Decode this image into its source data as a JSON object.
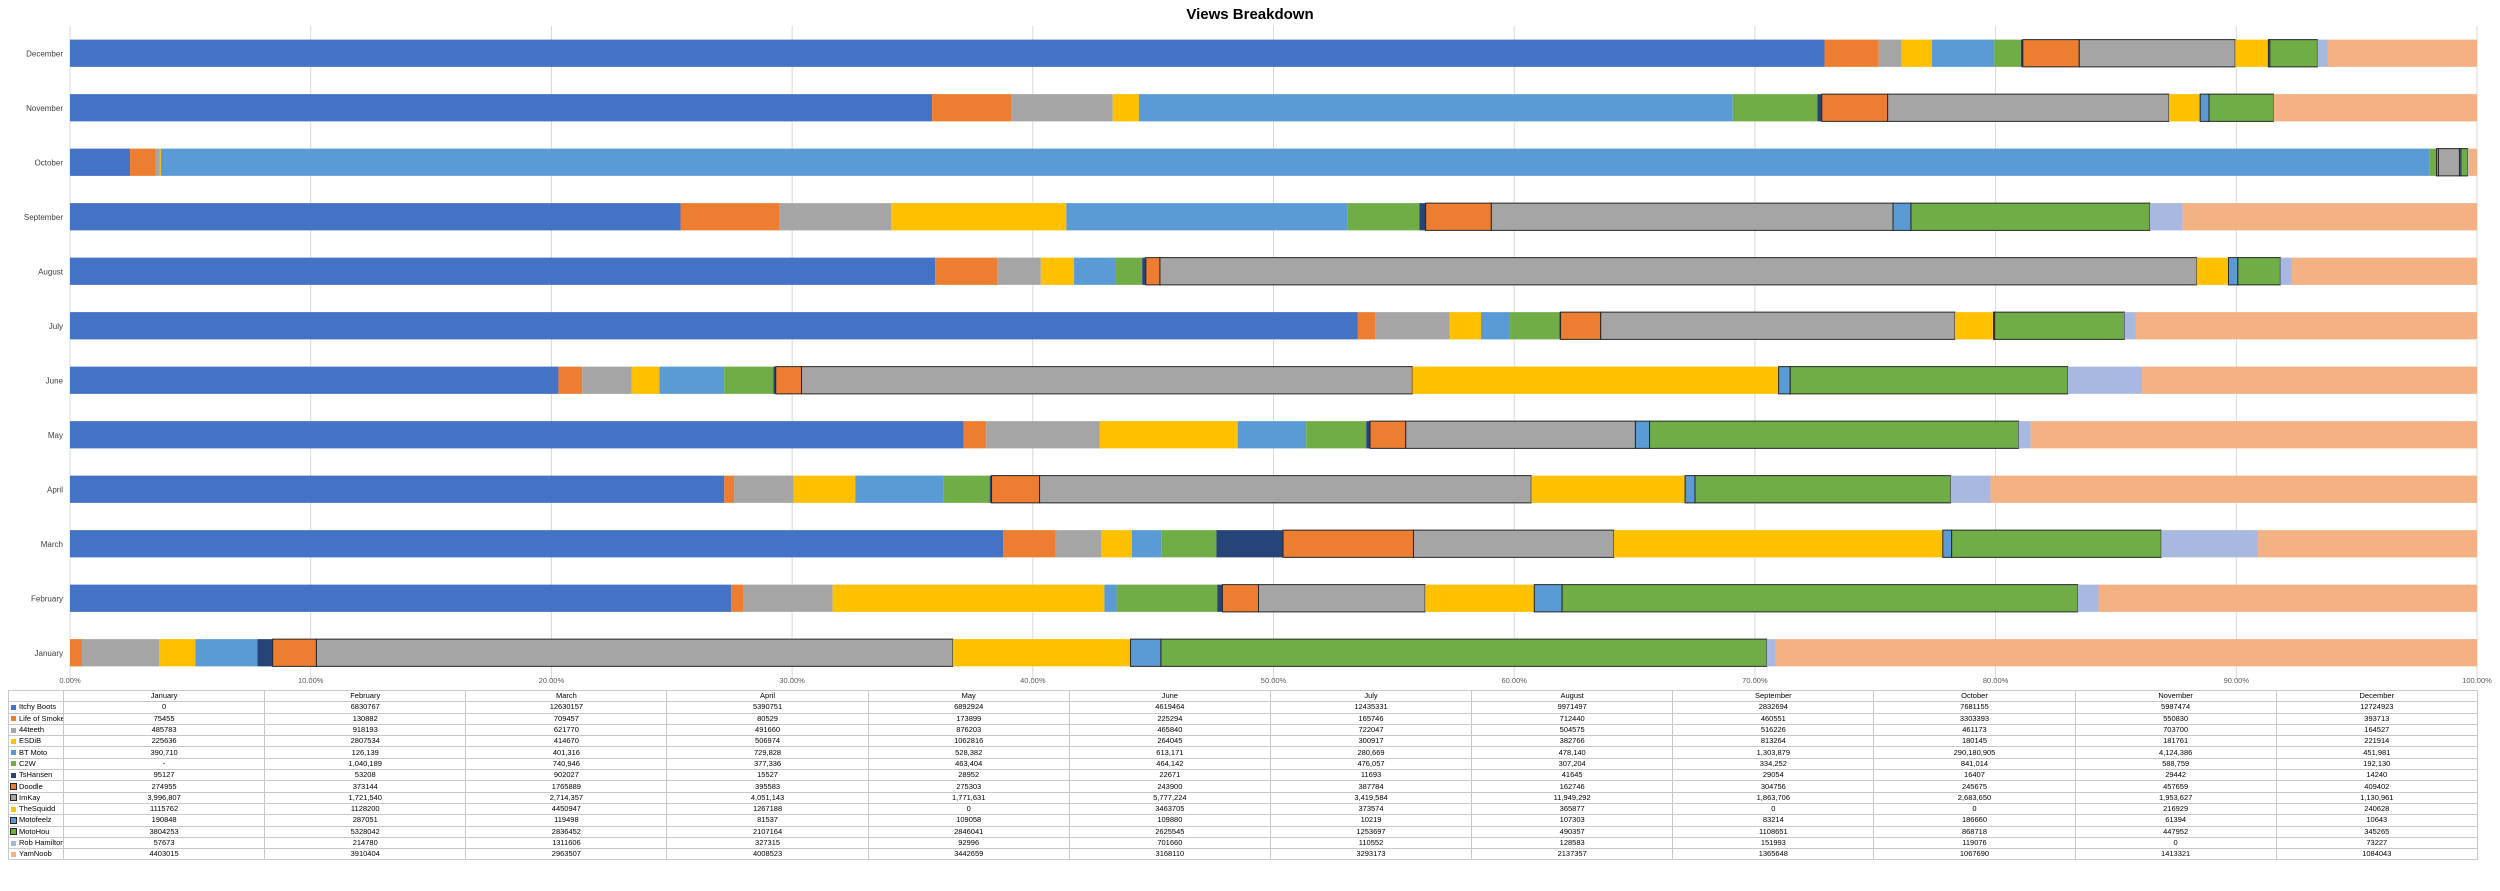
{
  "chart_data": {
    "type": "bar",
    "orientation": "horizontal",
    "stacking": "percent",
    "title": "Views Breakdown",
    "xlim": [
      0,
      100
    ],
    "x_ticks": [
      "0.00%",
      "10.00%",
      "20.00%",
      "30.00%",
      "40.00%",
      "50.00%",
      "60.00%",
      "70.00%",
      "80.00%",
      "90.00%",
      "100.00%"
    ],
    "grid": true,
    "legend": "data-table",
    "categories": [
      "January",
      "February",
      "March",
      "April",
      "May",
      "June",
      "July",
      "August",
      "September",
      "October",
      "November",
      "December"
    ],
    "series": [
      {
        "name": "Itchy Boots",
        "color": "#4472C4",
        "outlined": false,
        "labels": [
          "0",
          "6830767",
          "12630157",
          "5390751",
          "6892924",
          "4619464",
          "12435331",
          "9971497",
          "2832694",
          "7681155",
          "5987474",
          "12724923"
        ],
        "values": [
          0,
          6830767,
          12630157,
          5390751,
          6892924,
          4619464,
          12435331,
          9971497,
          2832694,
          7681155,
          5987474,
          12724923
        ]
      },
      {
        "name": "Life of Smokey",
        "color": "#ED7D31",
        "outlined": false,
        "labels": [
          "75455",
          "130882",
          "709457",
          "80529",
          "173899",
          "225294",
          "165746",
          "712440",
          "460551",
          "3303393",
          "550830",
          "393713"
        ],
        "values": [
          75455,
          130882,
          709457,
          80529,
          173899,
          225294,
          165746,
          712440,
          460551,
          3303393,
          550830,
          393713
        ]
      },
      {
        "name": "44teeth",
        "color": "#A5A5A5",
        "outlined": false,
        "labels": [
          "485783",
          "918193",
          "621770",
          "491660",
          "876203",
          "465840",
          "722047",
          "504575",
          "516226",
          "461173",
          "703700",
          "164527"
        ],
        "values": [
          485783,
          918193,
          621770,
          491660,
          876203,
          465840,
          722047,
          504575,
          516226,
          461173,
          703700,
          164527
        ]
      },
      {
        "name": "ESDiB",
        "color": "#FFC000",
        "outlined": false,
        "labels": [
          "225636",
          "2807534",
          "414670",
          "506974",
          "1062816",
          "264045",
          "300917",
          "382766",
          "813264",
          "180145",
          "181761",
          "221914"
        ],
        "values": [
          225636,
          2807534,
          414670,
          506974,
          1062816,
          264045,
          300917,
          382766,
          813264,
          180145,
          181761,
          221914
        ]
      },
      {
        "name": "BT Moto",
        "color": "#5B9BD5",
        "outlined": false,
        "labels": [
          "390,710",
          "126,139",
          "401,316",
          "729,828",
          "528,382",
          "613,171",
          "280,669",
          "478,140",
          "1,303,879",
          "290,180,905",
          "4,124,386",
          "451,981"
        ],
        "values": [
          390710,
          126139,
          401316,
          729828,
          528382,
          613171,
          280669,
          478140,
          1303879,
          290180905,
          4124386,
          451981
        ]
      },
      {
        "name": "C2W",
        "color": "#70AD47",
        "outlined": false,
        "labels": [
          "-",
          "1,040,189",
          "740,946",
          "377,336",
          "463,404",
          "464,142",
          "476,057",
          "307,204",
          "334,252",
          "841,014",
          "588,759",
          "192,130"
        ],
        "values": [
          0,
          1040189,
          740946,
          377336,
          463404,
          464142,
          476057,
          307204,
          334252,
          841014,
          588759,
          192130
        ]
      },
      {
        "name": "TsHansen",
        "color": "#264478",
        "outlined": false,
        "labels": [
          "95127",
          "53208",
          "902027",
          "15527",
          "28952",
          "22671",
          "11693",
          "41645",
          "29054",
          "16407",
          "29442",
          "14240"
        ],
        "values": [
          95127,
          53208,
          902027,
          15527,
          28952,
          22671,
          11693,
          41645,
          29054,
          16407,
          29442,
          14240
        ]
      },
      {
        "name": "Doodle",
        "color": "#ED7D31",
        "outlined": true,
        "labels": [
          "274955",
          "373144",
          "1765889",
          "395583",
          "275303",
          "243900",
          "387784",
          "162746",
          "304756",
          "245675",
          "457659",
          "409402"
        ],
        "values": [
          274955,
          373144,
          1765889,
          395583,
          275303,
          243900,
          387784,
          162746,
          304756,
          245675,
          457659,
          409402
        ]
      },
      {
        "name": "ImKay",
        "color": "#A5A5A5",
        "outlined": true,
        "labels": [
          "3,996,807",
          "1,721,540",
          "2,714,357",
          "4,051,143",
          "1,771,631",
          "5,777,224",
          "3,419,584",
          "11,949,292",
          "1,863,706",
          "2,683,650",
          "1,953,627",
          "1,130,961"
        ],
        "values": [
          3996807,
          1721540,
          2714357,
          4051143,
          1771631,
          5777224,
          3419584,
          11949292,
          1863706,
          2683650,
          1953627,
          1130961
        ]
      },
      {
        "name": "TheSquidd",
        "color": "#FFC000",
        "outlined": false,
        "labels": [
          "1115762",
          "1128200",
          "4450947",
          "1267188",
          "0",
          "3463705",
          "373574",
          "365877",
          "0",
          "0",
          "216929",
          "240628"
        ],
        "values": [
          1115762,
          1128200,
          4450947,
          1267188,
          0,
          3463705,
          373574,
          365877,
          0,
          0,
          216929,
          240628
        ]
      },
      {
        "name": "Motofeelz",
        "color": "#5B9BD5",
        "outlined": true,
        "labels": [
          "190848",
          "287051",
          "119498",
          "81537",
          "109058",
          "109880",
          "10219",
          "107303",
          "83214",
          "186660",
          "61394",
          "10643"
        ],
        "values": [
          190848,
          287051,
          119498,
          81537,
          109058,
          109880,
          10219,
          107303,
          83214,
          186660,
          61394,
          10643
        ]
      },
      {
        "name": "MotoHou",
        "color": "#70AD47",
        "outlined": true,
        "labels": [
          "3804253",
          "5328042",
          "2836452",
          "2107164",
          "2846041",
          "2625545",
          "1253697",
          "490357",
          "1108651",
          "868718",
          "447952",
          "345265"
        ],
        "values": [
          3804253,
          5328042,
          2836452,
          2107164,
          2846041,
          2625545,
          1253697,
          490357,
          1108651,
          868718,
          447952,
          345265
        ]
      },
      {
        "name": "Rob Hamilton",
        "color": "#A9B8E0",
        "outlined": false,
        "labels": [
          "57673",
          "214780",
          "1311606",
          "327315",
          "92996",
          "701660",
          "110552",
          "128583",
          "151993",
          "119076",
          "0",
          "73227"
        ],
        "values": [
          57673,
          214780,
          1311606,
          327315,
          92996,
          701660,
          110552,
          128583,
          151993,
          119076,
          0,
          73227
        ]
      },
      {
        "name": "YamNoob",
        "color": "#F4B183",
        "outlined": false,
        "labels": [
          "4403015",
          "3910404",
          "2963507",
          "4008523",
          "3442659",
          "3168110",
          "3293173",
          "2137357",
          "1365648",
          "1067690",
          "1413321",
          "1084043"
        ],
        "values": [
          4403015,
          3910404,
          2963507,
          4008523,
          3442659,
          3168110,
          3293173,
          2137357,
          1365648,
          1067690,
          1413321,
          1084043
        ]
      }
    ]
  }
}
